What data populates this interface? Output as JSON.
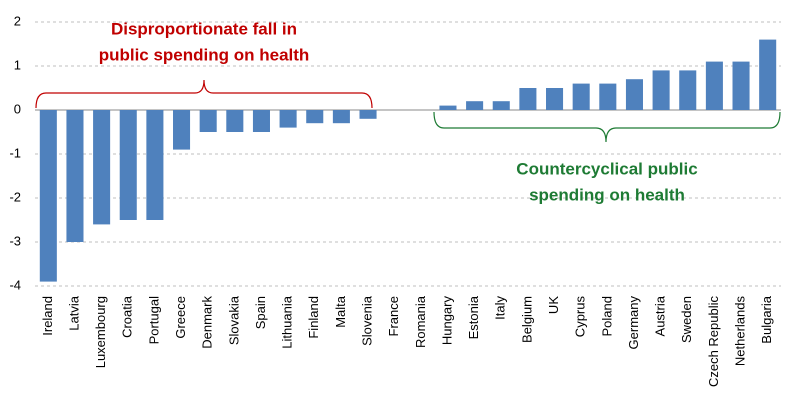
{
  "chart_data": {
    "type": "bar",
    "categories": [
      "Ireland",
      "Latvia",
      "Luxembourg",
      "Croatia",
      "Portugal",
      "Greece",
      "Denmark",
      "Slovakia",
      "Spain",
      "Lithuania",
      "Finland",
      "Malta",
      "Slovenia",
      "France",
      "Romania",
      "Hungary",
      "Estonia",
      "Italy",
      "Belgium",
      "UK",
      "Cyprus",
      "Poland",
      "Germany",
      "Austria",
      "Sweden",
      "Czech Republic",
      "Netherlands",
      "Bulgaria"
    ],
    "values": [
      -3.9,
      -3.0,
      -2.6,
      -2.5,
      -2.5,
      -0.9,
      -0.5,
      -0.5,
      -0.5,
      -0.4,
      -0.3,
      -0.3,
      -0.2,
      0,
      0,
      0.1,
      0.2,
      0.2,
      0.5,
      0.5,
      0.6,
      0.6,
      0.7,
      0.9,
      0.9,
      1.1,
      1.1,
      1.6
    ],
    "color": "#4f81bd",
    "ylim": [
      -4,
      2
    ],
    "yticks": [
      -4,
      -3,
      -2,
      -1,
      0,
      1,
      2
    ],
    "grid": true,
    "annotations": [
      {
        "lines": [
          "Disproportionate fall in",
          "public spending on health"
        ],
        "color": "#c00000"
      },
      {
        "lines": [
          "Countercyclical public",
          "spending on health"
        ],
        "color": "#1e7b34"
      }
    ]
  }
}
